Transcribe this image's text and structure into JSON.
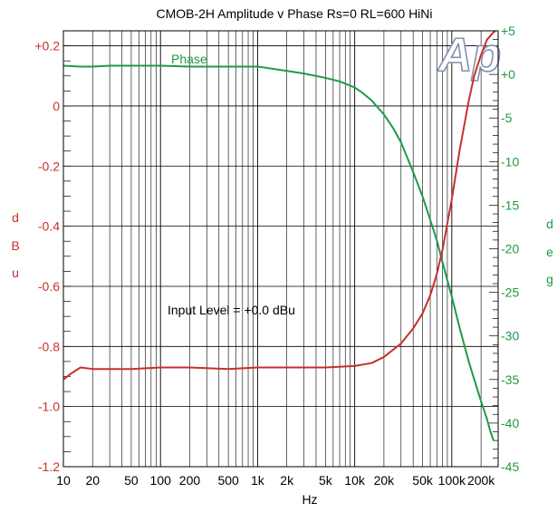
{
  "chart_data": {
    "type": "line",
    "title": "CMOB-2H   Amplitude v Phase Rs=0 RL=600   HiNi",
    "xlabel": "Hz",
    "ylabel_left": [
      "d",
      "B",
      "u"
    ],
    "ylabel_right": [
      "d",
      "e",
      "g"
    ],
    "x_scale": "log",
    "xlim": [
      10,
      300000
    ],
    "ylim_left": [
      -1.2,
      0.25
    ],
    "ylim_right": [
      -45,
      5
    ],
    "grid": true,
    "x_ticks": [
      {
        "value": 10,
        "label": "10"
      },
      {
        "value": 20,
        "label": "20"
      },
      {
        "value": 50,
        "label": "50"
      },
      {
        "value": 100,
        "label": "100"
      },
      {
        "value": 200,
        "label": "200"
      },
      {
        "value": 500,
        "label": "500"
      },
      {
        "value": 1000,
        "label": "1k"
      },
      {
        "value": 2000,
        "label": "2k"
      },
      {
        "value": 5000,
        "label": "5k"
      },
      {
        "value": 10000,
        "label": "10k"
      },
      {
        "value": 20000,
        "label": "20k"
      },
      {
        "value": 50000,
        "label": "50k"
      },
      {
        "value": 100000,
        "label": "100k"
      },
      {
        "value": 200000,
        "label": "200k"
      }
    ],
    "y_ticks_left": [
      {
        "value": 0.2,
        "label": "+0.2"
      },
      {
        "value": 0,
        "label": "0"
      },
      {
        "value": -0.2,
        "label": "-0.2"
      },
      {
        "value": -0.4,
        "label": "-0.4"
      },
      {
        "value": -0.6,
        "label": "-0.6"
      },
      {
        "value": -0.8,
        "label": "-0.8"
      },
      {
        "value": -1.0,
        "label": "-1.0"
      },
      {
        "value": -1.2,
        "label": "-1.2"
      }
    ],
    "y_ticks_right": [
      {
        "value": 5,
        "label": "+5"
      },
      {
        "value": 0,
        "label": "+0"
      },
      {
        "value": -5,
        "label": "-5"
      },
      {
        "value": -10,
        "label": "-10"
      },
      {
        "value": -15,
        "label": "-15"
      },
      {
        "value": -20,
        "label": "-20"
      },
      {
        "value": -25,
        "label": "-25"
      },
      {
        "value": -30,
        "label": "-30"
      },
      {
        "value": -35,
        "label": "-35"
      },
      {
        "value": -40,
        "label": "-40"
      },
      {
        "value": -45,
        "label": "-45"
      }
    ],
    "annotations": [
      {
        "text": "Input Level = +0.0 dBu"
      }
    ],
    "logo_text": "Ap",
    "series": [
      {
        "name": "Phase",
        "axis": "right",
        "color": "#1f9a45",
        "x": [
          10,
          15,
          20,
          30,
          50,
          100,
          200,
          500,
          1000,
          2000,
          3000,
          5000,
          7000,
          10000,
          12000,
          15000,
          20000,
          25000,
          30000,
          40000,
          50000,
          60000,
          70000,
          80000,
          100000,
          120000,
          150000,
          200000,
          230000,
          250000,
          270000
        ],
        "values": [
          1.0,
          0.9,
          0.9,
          1.0,
          1.0,
          1.0,
          0.9,
          0.9,
          0.9,
          0.4,
          0.1,
          -0.4,
          -0.8,
          -1.5,
          -2.1,
          -3.0,
          -4.6,
          -6.2,
          -7.8,
          -11.2,
          -14.0,
          -16.7,
          -19.0,
          -21.5,
          -25.5,
          -29.0,
          -33.0,
          -37.5,
          -39.5,
          -41.0,
          -42.0
        ]
      },
      {
        "name": "",
        "axis": "left",
        "color": "#c8302b",
        "x": [
          10,
          12,
          15,
          20,
          30,
          50,
          100,
          200,
          500,
          1000,
          2000,
          3000,
          5000,
          10000,
          15000,
          20000,
          30000,
          40000,
          50000,
          60000,
          70000,
          80000,
          100000,
          120000,
          150000,
          170000,
          200000,
          230000,
          260000,
          280000
        ],
        "values": [
          -0.91,
          -0.89,
          -0.87,
          -0.875,
          -0.875,
          -0.875,
          -0.87,
          -0.87,
          -0.875,
          -0.87,
          -0.87,
          -0.87,
          -0.87,
          -0.865,
          -0.855,
          -0.835,
          -0.79,
          -0.74,
          -0.69,
          -0.63,
          -0.56,
          -0.48,
          -0.31,
          -0.15,
          0.02,
          0.1,
          0.17,
          0.22,
          0.24,
          0.25
        ]
      }
    ]
  }
}
